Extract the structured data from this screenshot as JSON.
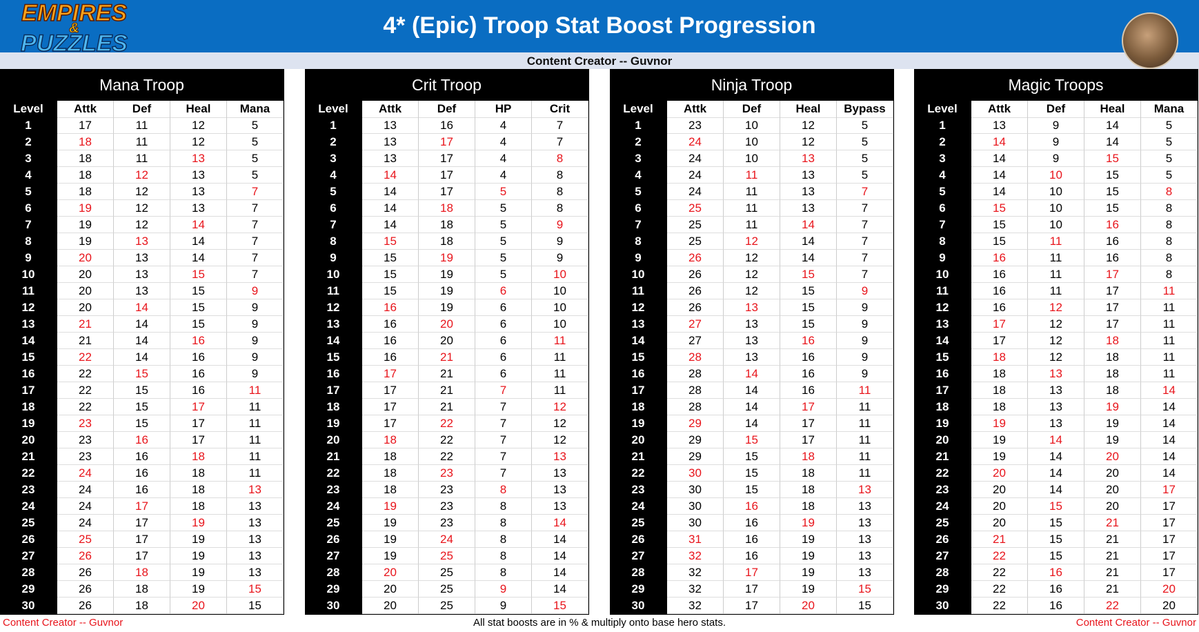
{
  "header": {
    "title": "4* (Epic) Troop Stat Boost Progression",
    "subtitle": "Content Creator -- Guvnor",
    "logo": [
      "EMPIRES",
      "&",
      "PUZZLES"
    ]
  },
  "tables": [
    {
      "title": "Mana Troop",
      "columns": [
        "Level",
        "Attk",
        "Def",
        "Heal",
        "Mana"
      ],
      "rows": [
        [
          1,
          17,
          11,
          12,
          5
        ],
        [
          2,
          18,
          11,
          12,
          5
        ],
        [
          3,
          18,
          11,
          13,
          5
        ],
        [
          4,
          18,
          12,
          13,
          5
        ],
        [
          5,
          18,
          12,
          13,
          7
        ],
        [
          6,
          19,
          12,
          13,
          7
        ],
        [
          7,
          19,
          12,
          14,
          7
        ],
        [
          8,
          19,
          13,
          14,
          7
        ],
        [
          9,
          20,
          13,
          14,
          7
        ],
        [
          10,
          20,
          13,
          15,
          7
        ],
        [
          11,
          20,
          13,
          15,
          9
        ],
        [
          12,
          20,
          14,
          15,
          9
        ],
        [
          13,
          21,
          14,
          15,
          9
        ],
        [
          14,
          21,
          14,
          16,
          9
        ],
        [
          15,
          22,
          14,
          16,
          9
        ],
        [
          16,
          22,
          15,
          16,
          9
        ],
        [
          17,
          22,
          15,
          16,
          11
        ],
        [
          18,
          22,
          15,
          17,
          11
        ],
        [
          19,
          23,
          15,
          17,
          11
        ],
        [
          20,
          23,
          16,
          17,
          11
        ],
        [
          21,
          23,
          16,
          18,
          11
        ],
        [
          22,
          24,
          16,
          18,
          11
        ],
        [
          23,
          24,
          16,
          18,
          13
        ],
        [
          24,
          24,
          17,
          18,
          13
        ],
        [
          25,
          24,
          17,
          19,
          13
        ],
        [
          26,
          25,
          17,
          19,
          13
        ],
        [
          27,
          26,
          17,
          19,
          13
        ],
        [
          28,
          26,
          18,
          19,
          13
        ],
        [
          29,
          26,
          18,
          19,
          15
        ],
        [
          30,
          26,
          18,
          20,
          15
        ]
      ]
    },
    {
      "title": "Crit Troop",
      "columns": [
        "Level",
        "Attk",
        "Def",
        "HP",
        "Crit"
      ],
      "rows": [
        [
          1,
          13,
          16,
          4,
          7
        ],
        [
          2,
          13,
          17,
          4,
          7
        ],
        [
          3,
          13,
          17,
          4,
          8
        ],
        [
          4,
          14,
          17,
          4,
          8
        ],
        [
          5,
          14,
          17,
          5,
          8
        ],
        [
          6,
          14,
          18,
          5,
          8
        ],
        [
          7,
          14,
          18,
          5,
          9
        ],
        [
          8,
          15,
          18,
          5,
          9
        ],
        [
          9,
          15,
          19,
          5,
          9
        ],
        [
          10,
          15,
          19,
          5,
          10
        ],
        [
          11,
          15,
          19,
          6,
          10
        ],
        [
          12,
          16,
          19,
          6,
          10
        ],
        [
          13,
          16,
          20,
          6,
          10
        ],
        [
          14,
          16,
          20,
          6,
          11
        ],
        [
          15,
          16,
          21,
          6,
          11
        ],
        [
          16,
          17,
          21,
          6,
          11
        ],
        [
          17,
          17,
          21,
          7,
          11
        ],
        [
          18,
          17,
          21,
          7,
          12
        ],
        [
          19,
          17,
          22,
          7,
          12
        ],
        [
          20,
          18,
          22,
          7,
          12
        ],
        [
          21,
          18,
          22,
          7,
          13
        ],
        [
          22,
          18,
          23,
          7,
          13
        ],
        [
          23,
          18,
          23,
          8,
          13
        ],
        [
          24,
          19,
          23,
          8,
          13
        ],
        [
          25,
          19,
          23,
          8,
          14
        ],
        [
          26,
          19,
          24,
          8,
          14
        ],
        [
          27,
          19,
          25,
          8,
          14
        ],
        [
          28,
          20,
          25,
          8,
          14
        ],
        [
          29,
          20,
          25,
          9,
          14
        ],
        [
          30,
          20,
          25,
          9,
          15
        ]
      ]
    },
    {
      "title": "Ninja Troop",
      "columns": [
        "Level",
        "Attk",
        "Def",
        "Heal",
        "Bypass"
      ],
      "rows": [
        [
          1,
          23,
          10,
          12,
          5
        ],
        [
          2,
          24,
          10,
          12,
          5
        ],
        [
          3,
          24,
          10,
          13,
          5
        ],
        [
          4,
          24,
          11,
          13,
          5
        ],
        [
          5,
          24,
          11,
          13,
          7
        ],
        [
          6,
          25,
          11,
          13,
          7
        ],
        [
          7,
          25,
          11,
          14,
          7
        ],
        [
          8,
          25,
          12,
          14,
          7
        ],
        [
          9,
          26,
          12,
          14,
          7
        ],
        [
          10,
          26,
          12,
          15,
          7
        ],
        [
          11,
          26,
          12,
          15,
          9
        ],
        [
          12,
          26,
          13,
          15,
          9
        ],
        [
          13,
          27,
          13,
          15,
          9
        ],
        [
          14,
          27,
          13,
          16,
          9
        ],
        [
          15,
          28,
          13,
          16,
          9
        ],
        [
          16,
          28,
          14,
          16,
          9
        ],
        [
          17,
          28,
          14,
          16,
          11
        ],
        [
          18,
          28,
          14,
          17,
          11
        ],
        [
          19,
          29,
          14,
          17,
          11
        ],
        [
          20,
          29,
          15,
          17,
          11
        ],
        [
          21,
          29,
          15,
          18,
          11
        ],
        [
          22,
          30,
          15,
          18,
          11
        ],
        [
          23,
          30,
          15,
          18,
          13
        ],
        [
          24,
          30,
          16,
          18,
          13
        ],
        [
          25,
          30,
          16,
          19,
          13
        ],
        [
          26,
          31,
          16,
          19,
          13
        ],
        [
          27,
          32,
          16,
          19,
          13
        ],
        [
          28,
          32,
          17,
          19,
          13
        ],
        [
          29,
          32,
          17,
          19,
          15
        ],
        [
          30,
          32,
          17,
          20,
          15
        ]
      ]
    },
    {
      "title": "Magic Troops",
      "columns": [
        "Level",
        "Attk",
        "Def",
        "Heal",
        "Mana"
      ],
      "rows": [
        [
          1,
          13,
          9,
          14,
          5
        ],
        [
          2,
          14,
          9,
          14,
          5
        ],
        [
          3,
          14,
          9,
          15,
          5
        ],
        [
          4,
          14,
          10,
          15,
          5
        ],
        [
          5,
          14,
          10,
          15,
          8
        ],
        [
          6,
          15,
          10,
          15,
          8
        ],
        [
          7,
          15,
          10,
          16,
          8
        ],
        [
          8,
          15,
          11,
          16,
          8
        ],
        [
          9,
          16,
          11,
          16,
          8
        ],
        [
          10,
          16,
          11,
          17,
          8
        ],
        [
          11,
          16,
          11,
          17,
          11
        ],
        [
          12,
          16,
          12,
          17,
          11
        ],
        [
          13,
          17,
          12,
          17,
          11
        ],
        [
          14,
          17,
          12,
          18,
          11
        ],
        [
          15,
          18,
          12,
          18,
          11
        ],
        [
          16,
          18,
          13,
          18,
          11
        ],
        [
          17,
          18,
          13,
          18,
          14
        ],
        [
          18,
          18,
          13,
          19,
          14
        ],
        [
          19,
          19,
          13,
          19,
          14
        ],
        [
          20,
          19,
          14,
          19,
          14
        ],
        [
          21,
          19,
          14,
          20,
          14
        ],
        [
          22,
          20,
          14,
          20,
          14
        ],
        [
          23,
          20,
          14,
          20,
          17
        ],
        [
          24,
          20,
          15,
          20,
          17
        ],
        [
          25,
          20,
          15,
          21,
          17
        ],
        [
          26,
          21,
          15,
          21,
          17
        ],
        [
          27,
          22,
          15,
          21,
          17
        ],
        [
          28,
          22,
          16,
          21,
          17
        ],
        [
          29,
          22,
          16,
          21,
          20
        ],
        [
          30,
          22,
          16,
          22,
          20
        ]
      ]
    }
  ],
  "footer": {
    "left": "Content Creator -- Guvnor",
    "center": "All stat boosts are in % & multiply onto base hero stats.",
    "right": "Content Creator -- Guvnor"
  }
}
